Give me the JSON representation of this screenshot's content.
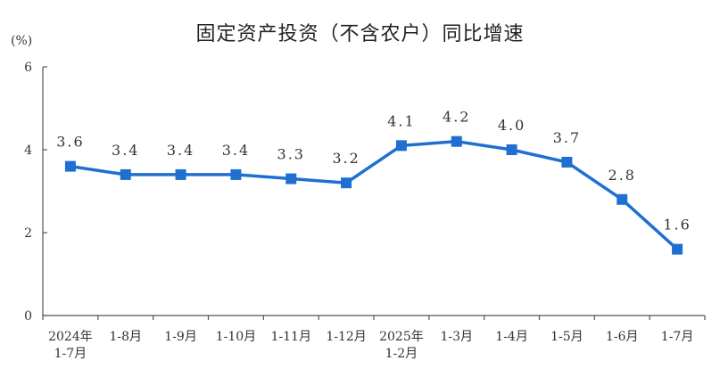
{
  "chart_data": {
    "type": "line",
    "title": "固定资产投资（不含农户）同比增速",
    "unit": "(%)",
    "xlabel": "",
    "ylabel": "",
    "ylim": [
      0,
      6
    ],
    "yticks": [
      0,
      2,
      4,
      6
    ],
    "grid": false,
    "legend": "none",
    "categories": [
      [
        "2024年",
        "1-7月"
      ],
      [
        "1-8月"
      ],
      [
        "1-9月"
      ],
      [
        "1-10月"
      ],
      [
        "1-11月"
      ],
      [
        "1-12月"
      ],
      [
        "2025年",
        "1-2月"
      ],
      [
        "1-3月"
      ],
      [
        "1-4月"
      ],
      [
        "1-5月"
      ],
      [
        "1-6月"
      ],
      [
        "1-7月"
      ]
    ],
    "series": [
      {
        "values": [
          3.6,
          3.4,
          3.4,
          3.4,
          3.3,
          3.2,
          4.1,
          4.2,
          4.0,
          3.7,
          2.8,
          1.6
        ],
        "labels": [
          "3.6",
          "3.4",
          "3.4",
          "3.4",
          "3.3",
          "3.2",
          "4.1",
          "4.2",
          "4.0",
          "3.7",
          "2.8",
          "1.6"
        ],
        "color": "#1f6fd1"
      }
    ],
    "axis_color": "#555555",
    "label_color": "#333333"
  }
}
